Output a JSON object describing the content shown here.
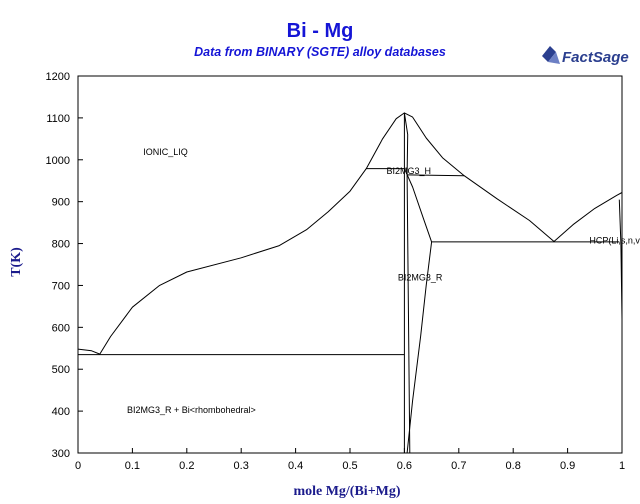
{
  "header": {
    "title": "Bi - Mg",
    "subtitle": "Data from BINARY (SGTE) alloy databases",
    "logo_text": "FactSage"
  },
  "colors": {
    "title": "#1515d6",
    "axis_label": "#1b1b8c",
    "lines": "#000000",
    "logo": "#2b3f8f"
  },
  "chart_data": {
    "type": "line",
    "xlabel": "mole Mg/(Bi+Mg)",
    "ylabel": "T(K)",
    "xlim": [
      0,
      1
    ],
    "ylim": [
      300,
      1200
    ],
    "xticks": [
      0,
      0.1,
      0.2,
      0.3,
      0.4,
      0.5,
      0.6,
      0.7,
      0.8,
      0.9,
      1
    ],
    "xtick_labels": [
      "0",
      "0.1",
      "0.2",
      "0.3",
      "0.4",
      "0.5",
      "0.6",
      "0.7",
      "0.8",
      "0.9",
      "1"
    ],
    "yticks": [
      300,
      400,
      500,
      600,
      700,
      800,
      900,
      1000,
      1100,
      1200
    ],
    "grid": false,
    "labels": [
      {
        "text": "IONIC_LIQ",
        "x": 0.12,
        "y": 1012
      },
      {
        "text": "BI2MG3_H",
        "x": 0.567,
        "y": 966
      },
      {
        "text": "BI2MG3_R",
        "x": 0.588,
        "y": 712
      },
      {
        "text": "HCP(Li,s,n,v)",
        "x": 0.94,
        "y": 800
      },
      {
        "text": "BI2MG3_R + Bi<rhombohedral>",
        "x": 0.09,
        "y": 396
      }
    ],
    "series": [
      {
        "points": [
          [
            0.0,
            548
          ],
          [
            0.025,
            544
          ],
          [
            0.04,
            536
          ]
        ]
      },
      {
        "points": [
          [
            0.04,
            536
          ],
          [
            0.06,
            578
          ],
          [
            0.1,
            648
          ],
          [
            0.15,
            700
          ],
          [
            0.2,
            732
          ],
          [
            0.3,
            766
          ],
          [
            0.37,
            795
          ],
          [
            0.42,
            833
          ],
          [
            0.46,
            876
          ],
          [
            0.5,
            925
          ],
          [
            0.53,
            979
          ],
          [
            0.56,
            1050
          ],
          [
            0.585,
            1098
          ],
          [
            0.6,
            1112
          ],
          [
            0.615,
            1102
          ],
          [
            0.64,
            1052
          ],
          [
            0.67,
            1005
          ],
          [
            0.71,
            962
          ],
          [
            0.77,
            907
          ],
          [
            0.83,
            855
          ],
          [
            0.875,
            805
          ]
        ]
      },
      {
        "points": [
          [
            0.875,
            805
          ],
          [
            0.91,
            845
          ],
          [
            0.95,
            884
          ],
          [
            0.99,
            915
          ],
          [
            1.0,
            922
          ]
        ]
      },
      {
        "points": [
          [
            0.0,
            535
          ],
          [
            0.6,
            535
          ]
        ]
      },
      {
        "points": [
          [
            0.53,
            979
          ],
          [
            0.6,
            979
          ]
        ]
      },
      {
        "points": [
          [
            0.605,
            964
          ],
          [
            0.71,
            962
          ]
        ]
      },
      {
        "points": [
          [
            0.65,
            804
          ],
          [
            0.995,
            804
          ]
        ]
      },
      {
        "points": [
          [
            0.6,
            300
          ],
          [
            0.6,
            1112
          ]
        ]
      },
      {
        "points": [
          [
            0.6,
            1112
          ],
          [
            0.606,
            1060
          ],
          [
            0.605,
            964
          ],
          [
            0.61,
            300
          ]
        ]
      },
      {
        "points": [
          [
            0.6,
            979
          ],
          [
            0.615,
            935
          ],
          [
            0.635,
            860
          ],
          [
            0.65,
            804
          ],
          [
            0.64,
            700
          ],
          [
            0.63,
            580
          ],
          [
            0.615,
            425
          ],
          [
            0.605,
            300
          ]
        ]
      },
      {
        "points": [
          [
            0.995,
            905
          ],
          [
            0.998,
            800
          ],
          [
            1.0,
            620
          ]
        ]
      }
    ]
  }
}
